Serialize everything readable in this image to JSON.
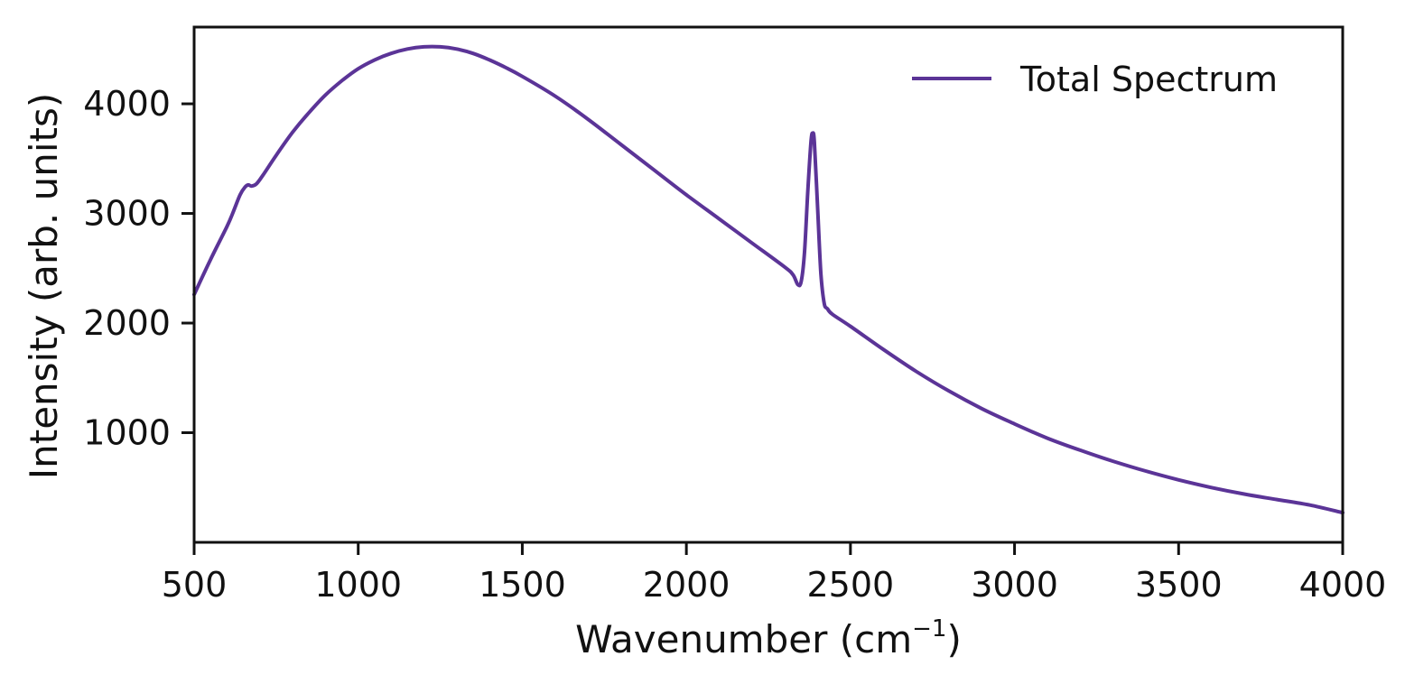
{
  "chart_data": {
    "type": "line",
    "title": "",
    "xlabel": "Wavenumber (cm",
    "xlabel_sup": "−1",
    "xlabel_close": ")",
    "ylabel": "Intensity (arb. units)",
    "xlim": [
      500,
      4000
    ],
    "ylim": [
      0,
      4700
    ],
    "xticks": [
      500,
      1000,
      1500,
      2000,
      2500,
      3000,
      3500,
      4000
    ],
    "yticks": [
      1000,
      2000,
      3000,
      4000
    ],
    "grid": false,
    "legend_position": "top-right",
    "series": [
      {
        "name": "Total Spectrum",
        "color": "#5b3497",
        "x": [
          500,
          550,
          600,
          620,
          640,
          655,
          665,
          675,
          690,
          710,
          750,
          800,
          850,
          900,
          950,
          1000,
          1050,
          1100,
          1150,
          1200,
          1250,
          1300,
          1350,
          1400,
          1450,
          1500,
          1600,
          1700,
          1800,
          1900,
          2000,
          2100,
          2200,
          2300,
          2325,
          2340,
          2350,
          2360,
          2370,
          2380,
          2385,
          2390,
          2400,
          2410,
          2420,
          2430,
          2445,
          2500,
          2600,
          2700,
          2800,
          2900,
          3000,
          3100,
          3200,
          3300,
          3400,
          3500,
          3600,
          3700,
          3800,
          3900,
          4000
        ],
        "values": [
          2260,
          2580,
          2880,
          3020,
          3170,
          3240,
          3260,
          3250,
          3270,
          3350,
          3530,
          3740,
          3920,
          4080,
          4210,
          4320,
          4400,
          4460,
          4500,
          4520,
          4520,
          4500,
          4460,
          4400,
          4330,
          4250,
          4070,
          3860,
          3630,
          3400,
          3170,
          2950,
          2730,
          2510,
          2440,
          2350,
          2380,
          2650,
          3200,
          3660,
          3730,
          3650,
          3050,
          2450,
          2180,
          2130,
          2080,
          1970,
          1760,
          1560,
          1380,
          1220,
          1080,
          950,
          840,
          740,
          650,
          570,
          500,
          440,
          390,
          340,
          270
        ]
      }
    ]
  }
}
